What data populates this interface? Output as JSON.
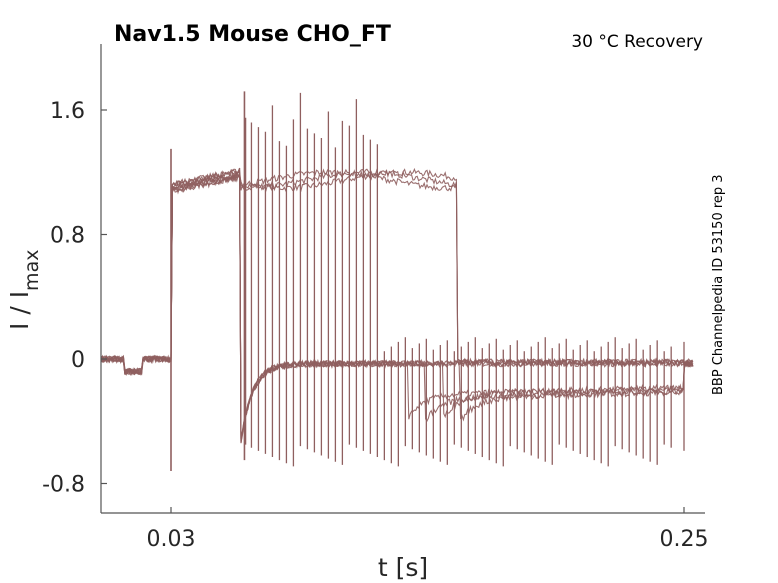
{
  "chart_data": {
    "type": "line",
    "title": "Nav1.5  Mouse  CHO_FT",
    "condition": "30 °C  Recovery",
    "side_label": "BBP Channelpedia ID 53150 rep 3",
    "xlabel": "t [s]",
    "ylabel_main": "I / I",
    "ylabel_sub": "max",
    "xlim": [
      0.0,
      0.254
    ],
    "ylim": [
      -0.92,
      2.05
    ],
    "xticks": [
      0.03,
      0.25
    ],
    "xtick_labels": [
      "0.03",
      "0.25"
    ],
    "yticks": [
      1.6,
      0.8,
      0,
      -0.8
    ],
    "ytick_labels": [
      "1.6",
      "0.8",
      "0",
      "-0.8"
    ],
    "grid": false,
    "trace_color": "#8f5f5f",
    "protocol": {
      "prepulse_start": 0.03,
      "prepulse_end": 0.06,
      "test_pulse_times": [
        0.062,
        0.0645,
        0.0675,
        0.0705,
        0.0735,
        0.0765,
        0.0795,
        0.0825,
        0.0855,
        0.0885,
        0.0915,
        0.0945,
        0.0975,
        0.1005,
        0.1035,
        0.1065,
        0.1095,
        0.1125,
        0.1155,
        0.1185,
        0.1215,
        0.1245,
        0.1275,
        0.1305,
        0.1335,
        0.1365,
        0.1395,
        0.1425,
        0.1455,
        0.1485,
        0.1515,
        0.1545,
        0.1575,
        0.1605,
        0.1635,
        0.1665,
        0.1695,
        0.1725,
        0.1755,
        0.1785,
        0.1815,
        0.1845,
        0.1875,
        0.1905,
        0.1935,
        0.1965,
        0.1995,
        0.2025,
        0.2055,
        0.2085,
        0.2115,
        0.2145,
        0.2175,
        0.2205,
        0.2235,
        0.2265,
        0.2295,
        0.2325,
        0.2355,
        0.2385,
        0.2415,
        0.2445,
        0.25
      ],
      "plateau_level": 1.08,
      "baseline_level": 0.0,
      "recovery_level": -0.25,
      "trace_end": 0.254
    }
  }
}
